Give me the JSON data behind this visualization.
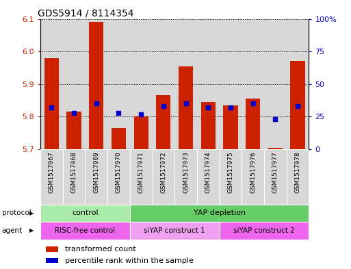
{
  "title": "GDS5914 / 8114354",
  "samples": [
    "GSM1517967",
    "GSM1517968",
    "GSM1517969",
    "GSM1517970",
    "GSM1517971",
    "GSM1517972",
    "GSM1517973",
    "GSM1517974",
    "GSM1517975",
    "GSM1517976",
    "GSM1517977",
    "GSM1517978"
  ],
  "transformed_count": [
    5.98,
    5.815,
    6.09,
    5.765,
    5.8,
    5.865,
    5.955,
    5.845,
    5.835,
    5.855,
    5.705,
    5.97
  ],
  "percentile_rank": [
    32,
    28,
    35,
    28,
    27,
    33,
    35,
    32,
    32,
    35,
    23,
    33
  ],
  "ylim_left": [
    5.7,
    6.1
  ],
  "ylim_right": [
    0,
    100
  ],
  "yticks_left": [
    5.7,
    5.8,
    5.9,
    6.0,
    6.1
  ],
  "yticks_right": [
    0,
    25,
    50,
    75,
    100
  ],
  "ytick_labels_right": [
    "0",
    "25",
    "50",
    "75",
    "100%"
  ],
  "bar_color": "#cc2200",
  "dot_color": "#0000cc",
  "bar_bottom": 5.7,
  "protocol_labels": [
    "control",
    "YAP depletion"
  ],
  "protocol_color_control": "#aaeaaa",
  "protocol_color_yap": "#66cc66",
  "agent_labels": [
    "RISC-free control",
    "siYAP construct 1",
    "siYAP construct 2"
  ],
  "agent_color_1": "#ee66ee",
  "agent_color_2": "#f0a0f0",
  "agent_color_3": "#ee66ee",
  "bg_color": "#d8d8d8",
  "left_label_color": "#cc2200",
  "right_label_color": "#0000cc",
  "legend_red_label": "transformed count",
  "legend_blue_label": "percentile rank within the sample",
  "figsize": [
    5.13,
    3.93
  ],
  "dpi": 100
}
